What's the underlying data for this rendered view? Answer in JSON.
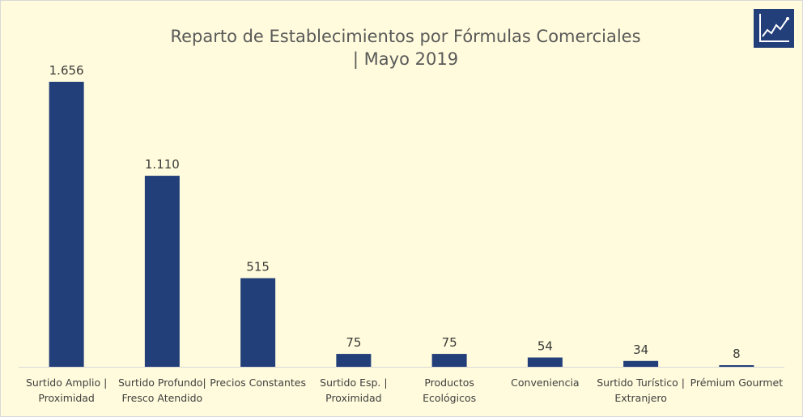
{
  "chart_data": {
    "type": "bar",
    "title_lines": [
      "Reparto de Establecimientos por Fórmulas Comerciales",
      "| Mayo 2019"
    ],
    "categories": [
      [
        "Surtido Amplio |",
        "Proximidad"
      ],
      [
        "Surtido Profundo|",
        "Fresco Atendido"
      ],
      [
        "Precios Constantes"
      ],
      [
        "Surtido Esp. |",
        "Proximidad"
      ],
      [
        "Productos",
        "Ecológicos"
      ],
      [
        "Conveniencia"
      ],
      [
        "Surtido Turístico |",
        "Extranjero"
      ],
      [
        "Prémium Gourmet"
      ]
    ],
    "values": [
      1656,
      1110,
      515,
      75,
      75,
      54,
      34,
      8
    ],
    "value_labels": [
      "1.656",
      "1.110",
      "515",
      "75",
      "75",
      "54",
      "34",
      "8"
    ],
    "xlabel": "",
    "ylabel": "",
    "ylim": [
      0,
      1656
    ],
    "grid": false,
    "bar_color": "#233f7a",
    "background_color": "#fffbdc"
  },
  "logo": {
    "icon": "chart-trend-icon",
    "color": "#233f7a"
  }
}
